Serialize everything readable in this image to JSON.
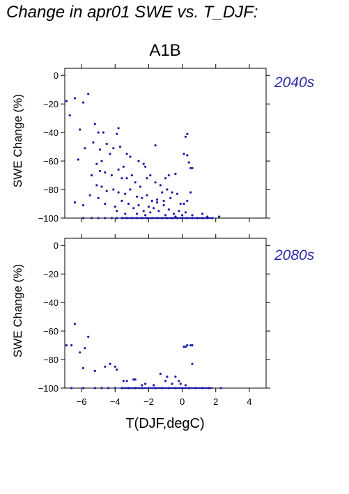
{
  "page": {
    "title": "Change in apr01 SWE vs. T_DJF:",
    "scenario": "A1B"
  },
  "colors": {
    "points": "#1a1aa6",
    "period_text": "#2a2aa8",
    "axes": "#000000"
  },
  "chart_data": [
    {
      "type": "scatter",
      "period_label": "2040s",
      "ylabel": "SWE Change (%)",
      "xlabel": "",
      "xlim": [
        -7,
        5
      ],
      "ylim": [
        -100,
        5
      ],
      "yticks": [
        0,
        -20,
        -40,
        -60,
        -80,
        -100
      ],
      "xticks": [],
      "grid": false,
      "points": [
        [
          -6.9,
          -18
        ],
        [
          -6.7,
          -28
        ],
        [
          -6.4,
          -16
        ],
        [
          -5.9,
          -19
        ],
        [
          -5.6,
          -13
        ],
        [
          -6.1,
          -38
        ],
        [
          -5.8,
          -51
        ],
        [
          -6.2,
          -59
        ],
        [
          -5.2,
          -34
        ],
        [
          -5.0,
          -40
        ],
        [
          -5.3,
          -47
        ],
        [
          -4.7,
          -40
        ],
        [
          -4.9,
          -52
        ],
        [
          -4.5,
          -48
        ],
        [
          -5.1,
          -62
        ],
        [
          -4.8,
          -60
        ],
        [
          -4.3,
          -55
        ],
        [
          -3.9,
          -41
        ],
        [
          -3.8,
          -37
        ],
        [
          -4.1,
          -51
        ],
        [
          -3.7,
          -50
        ],
        [
          -3.3,
          -55
        ],
        [
          -3.1,
          -57
        ],
        [
          -2.6,
          -60
        ],
        [
          -2.3,
          -62
        ],
        [
          -2.2,
          -64
        ],
        [
          -1.6,
          -49
        ],
        [
          -0.4,
          -69
        ],
        [
          0.2,
          -43
        ],
        [
          0.3,
          -41
        ],
        [
          0.1,
          -55
        ],
        [
          0.3,
          -56
        ],
        [
          0.5,
          -65
        ],
        [
          0.6,
          -65
        ],
        [
          0.4,
          -61
        ],
        [
          -4.9,
          -67
        ],
        [
          -4.6,
          -68
        ],
        [
          -4.2,
          -70
        ],
        [
          -3.8,
          -66
        ],
        [
          -3.5,
          -64
        ],
        [
          -3.6,
          -72
        ],
        [
          -3.3,
          -72
        ],
        [
          -3.0,
          -70
        ],
        [
          -2.8,
          -75
        ],
        [
          -2.5,
          -78
        ],
        [
          -2.1,
          -72
        ],
        [
          -1.9,
          -70
        ],
        [
          -1.6,
          -75
        ],
        [
          -1.3,
          -77
        ],
        [
          -1.0,
          -72
        ],
        [
          -0.8,
          -70
        ],
        [
          -5.4,
          -70
        ],
        [
          -5.1,
          -77
        ],
        [
          -4.8,
          -78
        ],
        [
          -4.5,
          -81
        ],
        [
          -4.1,
          -80
        ],
        [
          -3.8,
          -82
        ],
        [
          -3.4,
          -83
        ],
        [
          -3.1,
          -80
        ],
        [
          -2.7,
          -85
        ],
        [
          -2.4,
          -86
        ],
        [
          -2.1,
          -84
        ],
        [
          -1.8,
          -88
        ],
        [
          -1.5,
          -87
        ],
        [
          -1.2,
          -82
        ],
        [
          -0.9,
          -80
        ],
        [
          -0.6,
          -82
        ],
        [
          -0.3,
          -83
        ],
        [
          -0.1,
          -90
        ],
        [
          0.1,
          -90
        ],
        [
          0.3,
          -88
        ],
        [
          0.5,
          -82
        ],
        [
          -6.4,
          -89
        ],
        [
          -5.9,
          -91
        ],
        [
          -5.5,
          -84
        ],
        [
          -5.0,
          -86
        ],
        [
          -4.6,
          -90
        ],
        [
          -4.0,
          -92
        ],
        [
          -3.6,
          -88
        ],
        [
          -3.2,
          -90
        ],
        [
          -2.9,
          -93
        ],
        [
          -2.6,
          -91
        ],
        [
          -2.3,
          -95
        ],
        [
          -2.0,
          -92
        ],
        [
          -1.7,
          -93
        ],
        [
          -1.4,
          -95
        ],
        [
          -1.1,
          -91
        ],
        [
          -0.8,
          -94
        ],
        [
          -0.5,
          -97
        ],
        [
          -0.2,
          -95
        ],
        [
          0.2,
          -96
        ],
        [
          0.6,
          -98
        ],
        [
          1.2,
          -97
        ],
        [
          1.5,
          -99
        ],
        [
          -1.5,
          -89
        ],
        [
          -1.1,
          -88
        ],
        [
          -0.7,
          -86
        ],
        [
          -3.9,
          -95
        ],
        [
          -3.4,
          -97
        ],
        [
          -2.7,
          -97
        ],
        [
          -2.2,
          -98
        ],
        [
          -1.9,
          -96
        ],
        [
          -1.0,
          -98
        ],
        [
          -0.4,
          -99
        ],
        [
          0.0,
          -98
        ],
        [
          2.2,
          -99
        ],
        [
          -5.9,
          -100
        ],
        [
          -5.4,
          -100
        ],
        [
          -5.0,
          -100
        ],
        [
          -4.6,
          -100
        ],
        [
          -4.2,
          -100
        ],
        [
          -3.9,
          -100
        ],
        [
          -3.6,
          -100
        ],
        [
          -3.3,
          -100
        ],
        [
          -3.0,
          -100
        ],
        [
          -2.7,
          -100
        ],
        [
          -2.4,
          -100
        ],
        [
          -2.1,
          -100
        ],
        [
          -1.8,
          -100
        ],
        [
          -1.5,
          -100
        ],
        [
          -1.2,
          -100
        ],
        [
          -0.9,
          -100
        ],
        [
          -0.6,
          -100
        ],
        [
          -0.3,
          -100
        ],
        [
          0.0,
          -100
        ],
        [
          0.3,
          -100
        ],
        [
          0.6,
          -100
        ],
        [
          0.9,
          -100
        ],
        [
          1.2,
          -100
        ],
        [
          1.5,
          -100
        ],
        [
          1.8,
          -100
        ]
      ]
    },
    {
      "type": "scatter",
      "period_label": "2080s",
      "ylabel": "SWE Change (%)",
      "xlabel": "T(DJF,degC)",
      "xlim": [
        -7,
        5
      ],
      "ylim": [
        -100,
        5
      ],
      "yticks": [
        0,
        -20,
        -40,
        -60,
        -80,
        -100
      ],
      "xticks": [
        -6,
        -4,
        -2,
        0,
        2,
        4
      ],
      "grid": false,
      "points": [
        [
          -6.9,
          -70
        ],
        [
          -6.6,
          -70
        ],
        [
          -6.4,
          -55
        ],
        [
          -6.1,
          -75
        ],
        [
          -5.8,
          -72
        ],
        [
          -5.6,
          -64
        ],
        [
          -5.9,
          -86
        ],
        [
          -5.2,
          -88
        ],
        [
          -4.6,
          -85
        ],
        [
          -4.3,
          -83
        ],
        [
          -4.0,
          -85
        ],
        [
          -3.9,
          -87
        ],
        [
          -3.5,
          -95
        ],
        [
          -3.3,
          -95
        ],
        [
          -2.9,
          -94
        ],
        [
          -2.8,
          -94
        ],
        [
          -1.3,
          -90
        ],
        [
          -0.9,
          -92
        ],
        [
          -0.4,
          -92
        ],
        [
          -1.0,
          -95
        ],
        [
          -0.2,
          -95
        ],
        [
          0.1,
          -71
        ],
        [
          0.2,
          -71
        ],
        [
          0.3,
          -70
        ],
        [
          0.5,
          -70
        ],
        [
          0.6,
          -70
        ],
        [
          0.6,
          -83
        ],
        [
          -2.4,
          -98
        ],
        [
          -2.2,
          -97
        ],
        [
          -1.7,
          -98
        ],
        [
          -0.6,
          -97
        ],
        [
          -0.1,
          -97
        ],
        [
          0.2,
          -98
        ],
        [
          -6.6,
          -100
        ],
        [
          -5.9,
          -100
        ],
        [
          -5.2,
          -100
        ],
        [
          -4.8,
          -100
        ],
        [
          -4.4,
          -100
        ],
        [
          -4.0,
          -100
        ],
        [
          -3.6,
          -100
        ],
        [
          -3.2,
          -100
        ],
        [
          -2.8,
          -100
        ],
        [
          -2.4,
          -100
        ],
        [
          -2.0,
          -100
        ],
        [
          -1.6,
          -100
        ],
        [
          -1.2,
          -100
        ],
        [
          -0.8,
          -100
        ],
        [
          -0.4,
          -100
        ],
        [
          0.0,
          -100
        ],
        [
          0.4,
          -100
        ],
        [
          0.8,
          -100
        ],
        [
          1.2,
          -100
        ],
        [
          1.6,
          -100
        ],
        [
          2.3,
          -100
        ]
      ]
    }
  ]
}
